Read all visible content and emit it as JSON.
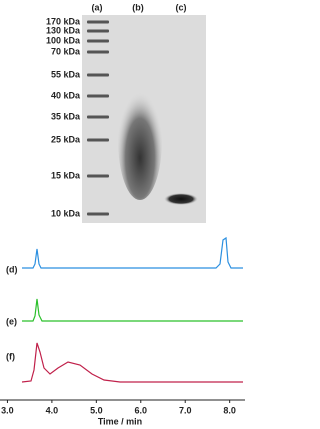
{
  "gel": {
    "lanes": [
      "(a)",
      "(b)",
      "(c)"
    ],
    "markers": [
      "170 kDa",
      "130 kDa",
      "100 kDa",
      "70 kDa",
      "55 kDa",
      "40 kDa",
      "35 kDa",
      "25 kDa",
      "15 kDa",
      "10 kDa"
    ]
  },
  "chromatogram": {
    "traces": [
      "(d)",
      "(e)",
      "(f)"
    ],
    "xlabel": "Time / min",
    "xlim": [
      2.9,
      8.3
    ],
    "xticks": [
      {
        "value": 3,
        "label": "3.0"
      },
      {
        "value": 4,
        "label": "4.0"
      },
      {
        "value": 5,
        "label": "5.0"
      },
      {
        "value": 6,
        "label": "6.0"
      },
      {
        "value": 7,
        "label": "7.0"
      },
      {
        "value": 8,
        "label": "8.0"
      }
    ]
  }
}
